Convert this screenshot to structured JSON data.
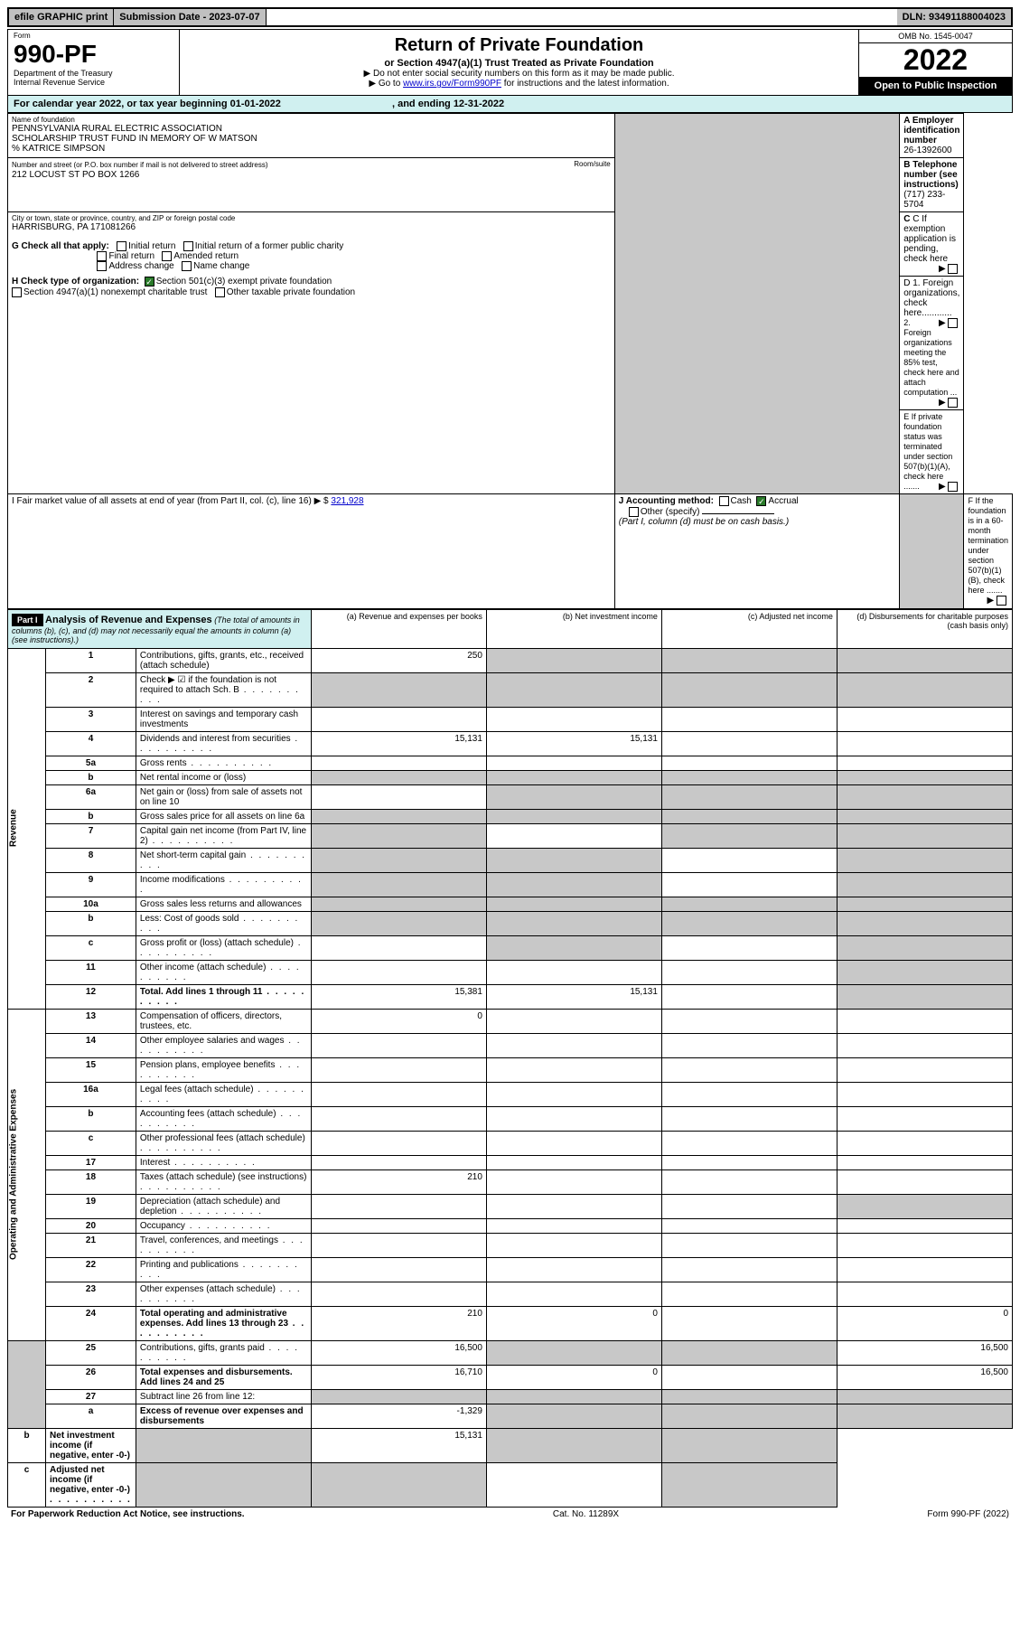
{
  "top": {
    "efile": "efile GRAPHIC print",
    "submission": "Submission Date - 2023-07-07",
    "dln": "DLN: 93491188004023"
  },
  "header": {
    "form_label": "Form",
    "form_num": "990-PF",
    "dept": "Department of the Treasury",
    "irs": "Internal Revenue Service",
    "title": "Return of Private Foundation",
    "subtitle": "or Section 4947(a)(1) Trust Treated as Private Foundation",
    "note1": "▶ Do not enter social security numbers on this form as it may be made public.",
    "note2_pre": "▶ Go to ",
    "note2_link": "www.irs.gov/Form990PF",
    "note2_post": " for instructions and the latest information.",
    "omb": "OMB No. 1545-0047",
    "year": "2022",
    "open": "Open to Public Inspection"
  },
  "cal": {
    "text": "For calendar year 2022, or tax year beginning 01-01-2022",
    "end": ", and ending 12-31-2022"
  },
  "info": {
    "name_lbl": "Name of foundation",
    "name1": "PENNSYLVANIA RURAL ELECTRIC ASSOCIATION",
    "name2": "SCHOLARSHIP TRUST FUND IN MEMORY OF W MATSON",
    "name3": "% KATRICE SIMPSON",
    "addr_lbl": "Number and street (or P.O. box number if mail is not delivered to street address)",
    "addr": "212 LOCUST ST PO BOX 1266",
    "room_lbl": "Room/suite",
    "city_lbl": "City or town, state or province, country, and ZIP or foreign postal code",
    "city": "HARRISBURG, PA  171081266",
    "ein_lbl": "A Employer identification number",
    "ein": "26-1392600",
    "tel_lbl": "B Telephone number (see instructions)",
    "tel": "(717) 233-5704",
    "c_lbl": "C If exemption application is pending, check here",
    "d1": "D 1. Foreign organizations, check here............",
    "d2": "2. Foreign organizations meeting the 85% test, check here and attach computation ...",
    "e": "E  If private foundation status was terminated under section 507(b)(1)(A), check here .......",
    "f": "F  If the foundation is in a 60-month termination under section 507(b)(1)(B), check here .......",
    "g_lbl": "G Check all that apply:",
    "g1": "Initial return",
    "g2": "Initial return of a former public charity",
    "g3": "Final return",
    "g4": "Amended return",
    "g5": "Address change",
    "g6": "Name change",
    "h_lbl": "H Check type of organization:",
    "h1": "Section 501(c)(3) exempt private foundation",
    "h2": "Section 4947(a)(1) nonexempt charitable trust",
    "h3": "Other taxable private foundation",
    "i_lbl": "I Fair market value of all assets at end of year (from Part II, col. (c), line 16)",
    "i_val": "321,928",
    "j_lbl": "J Accounting method:",
    "j1": "Cash",
    "j2": "Accrual",
    "j3": "Other (specify)",
    "j_note": "(Part I, column (d) must be on cash basis.)"
  },
  "part1": {
    "hdr": "Part I",
    "title": "Analysis of Revenue and Expenses",
    "note": "(The total of amounts in columns (b), (c), and (d) may not necessarily equal the amounts in column (a) (see instructions).)",
    "col_a": "(a)  Revenue and expenses per books",
    "col_b": "(b)  Net investment income",
    "col_c": "(c)  Adjusted net income",
    "col_d": "(d)  Disbursements for charitable purposes (cash basis only)"
  },
  "rows": [
    {
      "n": "1",
      "d": "Contributions, gifts, grants, etc., received (attach schedule)",
      "a": "250",
      "grey_bcd": true
    },
    {
      "n": "2",
      "d": "Check ▶ ☑ if the foundation is not required to attach Sch. B",
      "dots": true,
      "grey_all": true
    },
    {
      "n": "3",
      "d": "Interest on savings and temporary cash investments"
    },
    {
      "n": "4",
      "d": "Dividends and interest from securities",
      "dots": true,
      "a": "15,131",
      "b": "15,131"
    },
    {
      "n": "5a",
      "d": "Gross rents",
      "dots": true
    },
    {
      "n": "b",
      "d": "Net rental income or (loss)",
      "underline": true,
      "grey_all": true
    },
    {
      "n": "6a",
      "d": "Net gain or (loss) from sale of assets not on line 10",
      "grey_bcd": true
    },
    {
      "n": "b",
      "d": "Gross sales price for all assets on line 6a",
      "underline": true,
      "grey_all": true
    },
    {
      "n": "7",
      "d": "Capital gain net income (from Part IV, line 2)",
      "dots": true,
      "grey_a": true,
      "grey_cd": true
    },
    {
      "n": "8",
      "d": "Net short-term capital gain",
      "dots": true,
      "grey_ab": true,
      "grey_d": true
    },
    {
      "n": "9",
      "d": "Income modifications",
      "dots": true,
      "grey_ab": true,
      "grey_d": true
    },
    {
      "n": "10a",
      "d": "Gross sales less returns and allowances",
      "underline": true,
      "grey_all": true
    },
    {
      "n": "b",
      "d": "Less: Cost of goods sold",
      "dots": true,
      "underline": true,
      "grey_all": true
    },
    {
      "n": "c",
      "d": "Gross profit or (loss) (attach schedule)",
      "dots": true,
      "grey_b": true,
      "grey_d": true
    },
    {
      "n": "11",
      "d": "Other income (attach schedule)",
      "dots": true,
      "grey_d": true
    },
    {
      "n": "12",
      "d": "Total. Add lines 1 through 11",
      "dots": true,
      "bold": true,
      "a": "15,381",
      "b": "15,131",
      "grey_d": true
    },
    {
      "n": "13",
      "d": "Compensation of officers, directors, trustees, etc.",
      "a": "0"
    },
    {
      "n": "14",
      "d": "Other employee salaries and wages",
      "dots": true
    },
    {
      "n": "15",
      "d": "Pension plans, employee benefits",
      "dots": true
    },
    {
      "n": "16a",
      "d": "Legal fees (attach schedule)",
      "dots": true
    },
    {
      "n": "b",
      "d": "Accounting fees (attach schedule)",
      "dots": true
    },
    {
      "n": "c",
      "d": "Other professional fees (attach schedule)",
      "dots": true
    },
    {
      "n": "17",
      "d": "Interest",
      "dots": true
    },
    {
      "n": "18",
      "d": "Taxes (attach schedule) (see instructions)",
      "dots": true,
      "a": "210"
    },
    {
      "n": "19",
      "d": "Depreciation (attach schedule) and depletion",
      "dots": true,
      "grey_d": true
    },
    {
      "n": "20",
      "d": "Occupancy",
      "dots": true
    },
    {
      "n": "21",
      "d": "Travel, conferences, and meetings",
      "dots": true
    },
    {
      "n": "22",
      "d": "Printing and publications",
      "dots": true
    },
    {
      "n": "23",
      "d": "Other expenses (attach schedule)",
      "dots": true
    },
    {
      "n": "24",
      "d": "Total operating and administrative expenses. Add lines 13 through 23",
      "dots": true,
      "bold": true,
      "a": "210",
      "b": "0",
      "d2": "0"
    },
    {
      "n": "25",
      "d": "Contributions, gifts, grants paid",
      "dots": true,
      "a": "16,500",
      "grey_bc": true,
      "d2": "16,500"
    },
    {
      "n": "26",
      "d": "Total expenses and disbursements. Add lines 24 and 25",
      "bold": true,
      "a": "16,710",
      "b": "0",
      "d2": "16,500"
    },
    {
      "n": "27",
      "d": "Subtract line 26 from line 12:",
      "grey_all": true
    },
    {
      "n": "a",
      "d": "Excess of revenue over expenses and disbursements",
      "bold": true,
      "a": "-1,329",
      "grey_bcd": true
    },
    {
      "n": "b",
      "d": "Net investment income (if negative, enter -0-)",
      "bold": true,
      "grey_a": true,
      "b": "15,131",
      "grey_cd": true
    },
    {
      "n": "c",
      "d": "Adjusted net income (if negative, enter -0-)",
      "dots": true,
      "bold": true,
      "grey_ab": true,
      "grey_d": true
    }
  ],
  "side_rev": "Revenue",
  "side_exp": "Operating and Administrative Expenses",
  "footer": {
    "left": "For Paperwork Reduction Act Notice, see instructions.",
    "mid": "Cat. No. 11289X",
    "right": "Form 990-PF (2022)"
  },
  "colors": {
    "bg": "#ffffff",
    "grey": "#c8c8c8",
    "cyan": "#d0f0f0",
    "black": "#000000",
    "link": "#0000cc",
    "check": "#2a7a2a"
  }
}
